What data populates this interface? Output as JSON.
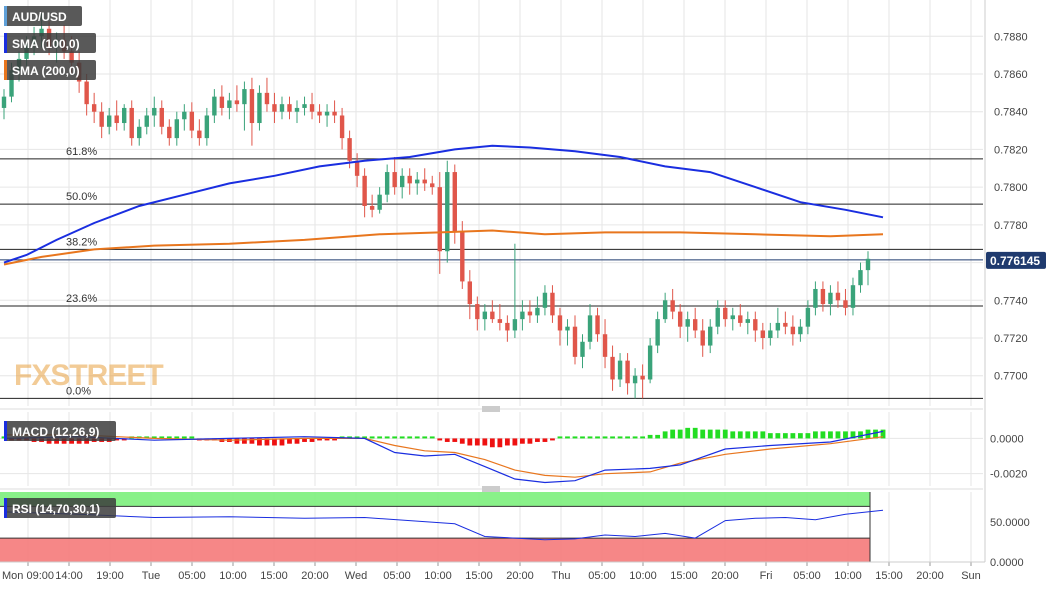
{
  "symbol": "AUD/USD",
  "indicators": {
    "sma100": {
      "label": "SMA (100,0)",
      "color": "#1a2ee0"
    },
    "sma200": {
      "label": "SMA (200,0)",
      "color": "#e8761e"
    },
    "macd": {
      "label": "MACD (12,26,9)"
    },
    "rsi": {
      "label": "RSI (14,70,30,1)"
    }
  },
  "watermark": "FXSTREET",
  "last_price": "0.776145",
  "colors": {
    "up": "#3aa37a",
    "down": "#e0564a",
    "macd_pos": "#22dd22",
    "macd_neg": "#ee1111"
  },
  "chart_data": [
    {
      "type": "candlestick",
      "title": "AUD/USD",
      "ylim": [
        0.7685,
        0.7895
      ],
      "y_ticks": [
        "0.7700",
        "0.7720",
        "0.7740",
        "0.7760",
        "0.7780",
        "0.7800",
        "0.7820",
        "0.7840",
        "0.7860",
        "0.7880"
      ],
      "x_ticks": [
        "Mon 09:00",
        "14:00",
        "19:00",
        "Tue",
        "05:00",
        "10:00",
        "15:00",
        "20:00",
        "Wed",
        "05:00",
        "10:00",
        "15:00",
        "20:00",
        "Thu",
        "05:00",
        "10:00",
        "15:00",
        "20:00",
        "Fri",
        "05:00",
        "10:00",
        "15:00",
        "20:00",
        "Sun"
      ],
      "fibonacci": [
        {
          "label": "61.8%",
          "value": 0.7815
        },
        {
          "label": "50.0%",
          "value": 0.7791
        },
        {
          "label": "38.2%",
          "value": 0.7767
        },
        {
          "label": "23.6%",
          "value": 0.7737
        },
        {
          "label": "0.0%",
          "value": 0.7688
        }
      ],
      "current_price": 0.776145,
      "ohlc": [
        [
          0.7842,
          0.7852,
          0.7836,
          0.7848
        ],
        [
          0.7848,
          0.7866,
          0.7845,
          0.7862
        ],
        [
          0.7862,
          0.7872,
          0.7856,
          0.7868
        ],
        [
          0.7868,
          0.788,
          0.7864,
          0.7876
        ],
        [
          0.7876,
          0.7885,
          0.787,
          0.788
        ],
        [
          0.788,
          0.7892,
          0.7874,
          0.7884
        ],
        [
          0.7884,
          0.7888,
          0.787,
          0.7874
        ],
        [
          0.7874,
          0.7882,
          0.7866,
          0.7878
        ],
        [
          0.7878,
          0.7886,
          0.7868,
          0.7872
        ],
        [
          0.7872,
          0.788,
          0.786,
          0.7866
        ],
        [
          0.7866,
          0.7872,
          0.785,
          0.7856
        ],
        [
          0.7856,
          0.786,
          0.7838,
          0.7844
        ],
        [
          0.7844,
          0.785,
          0.7834,
          0.784
        ],
        [
          0.784,
          0.7845,
          0.7826,
          0.7832
        ],
        [
          0.7832,
          0.7842,
          0.7828,
          0.7838
        ],
        [
          0.7838,
          0.7846,
          0.783,
          0.7834
        ],
        [
          0.7834,
          0.7844,
          0.783,
          0.7842
        ],
        [
          0.7842,
          0.7846,
          0.7822,
          0.7826
        ],
        [
          0.7826,
          0.7836,
          0.7822,
          0.7832
        ],
        [
          0.7832,
          0.7842,
          0.7828,
          0.7838
        ],
        [
          0.7838,
          0.7848,
          0.7832,
          0.7842
        ],
        [
          0.7842,
          0.7846,
          0.7828,
          0.7832
        ],
        [
          0.7832,
          0.7836,
          0.7822,
          0.7826
        ],
        [
          0.7826,
          0.784,
          0.7822,
          0.7836
        ],
        [
          0.7836,
          0.7844,
          0.783,
          0.784
        ],
        [
          0.784,
          0.7845,
          0.7826,
          0.783
        ],
        [
          0.783,
          0.7836,
          0.7822,
          0.7826
        ],
        [
          0.7826,
          0.7842,
          0.7822,
          0.7838
        ],
        [
          0.7838,
          0.7852,
          0.7834,
          0.7848
        ],
        [
          0.7848,
          0.7854,
          0.7838,
          0.7842
        ],
        [
          0.7842,
          0.785,
          0.7836,
          0.7846
        ],
        [
          0.7846,
          0.7854,
          0.784,
          0.7844
        ],
        [
          0.7844,
          0.7856,
          0.783,
          0.7852
        ],
        [
          0.7852,
          0.7858,
          0.7822,
          0.7834
        ],
        [
          0.7834,
          0.7854,
          0.783,
          0.785
        ],
        [
          0.785,
          0.7858,
          0.784,
          0.7844
        ],
        [
          0.7844,
          0.785,
          0.7834,
          0.784
        ],
        [
          0.784,
          0.7848,
          0.7836,
          0.7844
        ],
        [
          0.7844,
          0.7848,
          0.7836,
          0.784
        ],
        [
          0.784,
          0.7846,
          0.7834,
          0.7842
        ],
        [
          0.7842,
          0.7848,
          0.7838,
          0.7844
        ],
        [
          0.7844,
          0.785,
          0.7836,
          0.784
        ],
        [
          0.784,
          0.7844,
          0.7834,
          0.7838
        ],
        [
          0.7838,
          0.7844,
          0.7832,
          0.784
        ],
        [
          0.784,
          0.7846,
          0.7834,
          0.7838
        ],
        [
          0.7838,
          0.7842,
          0.782,
          0.7826
        ],
        [
          0.7826,
          0.783,
          0.781,
          0.7814
        ],
        [
          0.7814,
          0.7818,
          0.78,
          0.7806
        ],
        [
          0.7806,
          0.781,
          0.7784,
          0.779
        ],
        [
          0.779,
          0.7796,
          0.7784,
          0.7788
        ],
        [
          0.7788,
          0.78,
          0.7786,
          0.7796
        ],
        [
          0.7796,
          0.7812,
          0.7792,
          0.7808
        ],
        [
          0.7808,
          0.7816,
          0.7796,
          0.78
        ],
        [
          0.78,
          0.781,
          0.7794,
          0.7806
        ],
        [
          0.7806,
          0.781,
          0.7796,
          0.7802
        ],
        [
          0.7802,
          0.7808,
          0.7796,
          0.7804
        ],
        [
          0.7804,
          0.781,
          0.7798,
          0.7802
        ],
        [
          0.7802,
          0.7806,
          0.7796,
          0.78
        ],
        [
          0.78,
          0.7808,
          0.7754,
          0.7766
        ],
        [
          0.7766,
          0.7814,
          0.776,
          0.7808
        ],
        [
          0.7808,
          0.7812,
          0.777,
          0.7776
        ],
        [
          0.7776,
          0.7782,
          0.7746,
          0.775
        ],
        [
          0.775,
          0.7756,
          0.773,
          0.7738
        ],
        [
          0.7738,
          0.7742,
          0.7724,
          0.773
        ],
        [
          0.773,
          0.7738,
          0.7724,
          0.7734
        ],
        [
          0.7734,
          0.774,
          0.7728,
          0.773
        ],
        [
          0.773,
          0.7738,
          0.7724,
          0.7728
        ],
        [
          0.7728,
          0.7732,
          0.7718,
          0.7724
        ],
        [
          0.7724,
          0.777,
          0.772,
          0.773
        ],
        [
          0.773,
          0.774,
          0.7724,
          0.7734
        ],
        [
          0.7734,
          0.774,
          0.7728,
          0.7732
        ],
        [
          0.7732,
          0.7742,
          0.7728,
          0.7736
        ],
        [
          0.7736,
          0.7748,
          0.7732,
          0.7744
        ],
        [
          0.7744,
          0.7748,
          0.7728,
          0.7732
        ],
        [
          0.7732,
          0.7736,
          0.7716,
          0.7724
        ],
        [
          0.7724,
          0.773,
          0.7716,
          0.7726
        ],
        [
          0.7726,
          0.7732,
          0.7706,
          0.771
        ],
        [
          0.771,
          0.7722,
          0.7704,
          0.7718
        ],
        [
          0.7718,
          0.7738,
          0.7714,
          0.7732
        ],
        [
          0.7732,
          0.7736,
          0.7718,
          0.7722
        ],
        [
          0.7722,
          0.773,
          0.7704,
          0.771
        ],
        [
          0.771,
          0.7716,
          0.7692,
          0.7698
        ],
        [
          0.7698,
          0.7712,
          0.7694,
          0.7708
        ],
        [
          0.7708,
          0.7712,
          0.769,
          0.7696
        ],
        [
          0.7696,
          0.7704,
          0.7688,
          0.77
        ],
        [
          0.77,
          0.7706,
          0.7688,
          0.7698
        ],
        [
          0.7698,
          0.772,
          0.7696,
          0.7716
        ],
        [
          0.7716,
          0.7734,
          0.7712,
          0.773
        ],
        [
          0.773,
          0.7744,
          0.7728,
          0.774
        ],
        [
          0.774,
          0.7746,
          0.773,
          0.7734
        ],
        [
          0.7734,
          0.7738,
          0.772,
          0.7726
        ],
        [
          0.7726,
          0.7734,
          0.7718,
          0.773
        ],
        [
          0.773,
          0.7736,
          0.772,
          0.7724
        ],
        [
          0.7724,
          0.773,
          0.771,
          0.7716
        ],
        [
          0.7716,
          0.773,
          0.7712,
          0.7726
        ],
        [
          0.7726,
          0.774,
          0.7722,
          0.7736
        ],
        [
          0.7736,
          0.774,
          0.7726,
          0.773
        ],
        [
          0.773,
          0.7736,
          0.7724,
          0.7732
        ],
        [
          0.7732,
          0.7738,
          0.7726,
          0.7728
        ],
        [
          0.7728,
          0.7734,
          0.7722,
          0.773
        ],
        [
          0.773,
          0.7734,
          0.7718,
          0.7724
        ],
        [
          0.7724,
          0.7728,
          0.7714,
          0.772
        ],
        [
          0.772,
          0.7728,
          0.7716,
          0.7724
        ],
        [
          0.7724,
          0.7736,
          0.772,
          0.7728
        ],
        [
          0.7728,
          0.7734,
          0.7722,
          0.7726
        ],
        [
          0.7726,
          0.7732,
          0.7716,
          0.7722
        ],
        [
          0.7722,
          0.773,
          0.7718,
          0.7726
        ],
        [
          0.7726,
          0.774,
          0.7722,
          0.7736
        ],
        [
          0.7736,
          0.775,
          0.7732,
          0.7746
        ],
        [
          0.7746,
          0.775,
          0.7734,
          0.7738
        ],
        [
          0.7738,
          0.7748,
          0.7732,
          0.7744
        ],
        [
          0.7744,
          0.775,
          0.7736,
          0.774
        ],
        [
          0.774,
          0.7746,
          0.7732,
          0.7736
        ],
        [
          0.7736,
          0.7752,
          0.7732,
          0.7748
        ],
        [
          0.7748,
          0.776,
          0.7744,
          0.7756
        ],
        [
          0.7756,
          0.7766,
          0.7748,
          0.7762
        ]
      ],
      "sma100": [
        [
          0,
          0.776
        ],
        [
          3,
          0.7764
        ],
        [
          7,
          0.7772
        ],
        [
          12,
          0.7781
        ],
        [
          18,
          0.779
        ],
        [
          24,
          0.7796
        ],
        [
          30,
          0.7802
        ],
        [
          36,
          0.7806
        ],
        [
          42,
          0.7811
        ],
        [
          48,
          0.7814
        ],
        [
          54,
          0.7816
        ],
        [
          60,
          0.782
        ],
        [
          65,
          0.7822
        ],
        [
          70,
          0.7821
        ],
        [
          76,
          0.7819
        ],
        [
          82,
          0.7816
        ],
        [
          88,
          0.7811
        ],
        [
          94,
          0.7808
        ],
        [
          100,
          0.78
        ],
        [
          106,
          0.7792
        ],
        [
          112,
          0.7788
        ],
        [
          117,
          0.7784
        ]
      ],
      "sma200": [
        [
          0,
          0.7759
        ],
        [
          5,
          0.7763
        ],
        [
          12,
          0.7767
        ],
        [
          20,
          0.7769
        ],
        [
          30,
          0.777
        ],
        [
          40,
          0.7772
        ],
        [
          50,
          0.7775
        ],
        [
          58,
          0.7776
        ],
        [
          65,
          0.7777
        ],
        [
          72,
          0.7775
        ],
        [
          80,
          0.7776
        ],
        [
          90,
          0.7776
        ],
        [
          100,
          0.7775
        ],
        [
          110,
          0.7774
        ],
        [
          117,
          0.7775
        ]
      ]
    },
    {
      "type": "macd",
      "title": "MACD (12,26,9)",
      "ylim": [
        -0.0027,
        0.0015
      ],
      "y_ticks": [
        "0.0000",
        "-0.0020"
      ],
      "macd_line": [
        [
          0,
          0.0
        ],
        [
          10,
          0.0001
        ],
        [
          20,
          -0.0001
        ],
        [
          30,
          0.0
        ],
        [
          40,
          0.0001
        ],
        [
          48,
          0.0
        ],
        [
          52,
          -0.0008
        ],
        [
          56,
          -0.001
        ],
        [
          60,
          -0.0009
        ],
        [
          64,
          -0.0016
        ],
        [
          68,
          -0.0023
        ],
        [
          72,
          -0.0025
        ],
        [
          76,
          -0.0024
        ],
        [
          80,
          -0.0018
        ],
        [
          86,
          -0.0017
        ],
        [
          90,
          -0.0015
        ],
        [
          96,
          -0.0006
        ],
        [
          102,
          -0.0004
        ],
        [
          110,
          -0.0002
        ],
        [
          117,
          0.0004
        ]
      ],
      "signal_line": [
        [
          0,
          0.0002
        ],
        [
          10,
          0.0002
        ],
        [
          20,
          0.0
        ],
        [
          30,
          -0.0001
        ],
        [
          40,
          0.0
        ],
        [
          48,
          0.0
        ],
        [
          52,
          -0.0004
        ],
        [
          56,
          -0.0007
        ],
        [
          60,
          -0.0008
        ],
        [
          64,
          -0.0012
        ],
        [
          68,
          -0.0018
        ],
        [
          72,
          -0.0021
        ],
        [
          76,
          -0.0022
        ],
        [
          80,
          -0.002
        ],
        [
          86,
          -0.0019
        ],
        [
          90,
          -0.0014
        ],
        [
          96,
          -0.0009
        ],
        [
          102,
          -0.0006
        ],
        [
          110,
          -0.0003
        ],
        [
          117,
          0.0001
        ]
      ],
      "histogram": [
        0.0,
        -0.0001,
        -0.0001,
        -0.0001,
        -0.0002,
        -0.0002,
        -0.0003,
        -0.0003,
        -0.0003,
        -0.0003,
        -0.0003,
        -0.0003,
        -0.0002,
        -0.0002,
        -0.0002,
        -0.0001,
        -0.0001,
        0.0,
        0.0,
        0.0001,
        0.0001,
        0.0,
        0.0,
        0.0,
        0.0,
        0.0,
        -0.0001,
        -0.0001,
        -0.0001,
        -0.0002,
        -0.0002,
        -0.0003,
        -0.0003,
        -0.0003,
        -0.0004,
        -0.0004,
        -0.0004,
        -0.0004,
        -0.0003,
        -0.0003,
        -0.0002,
        -0.0002,
        -0.0001,
        -0.0001,
        -0.0001,
        0.0,
        0.0001,
        0.0001,
        0.0,
        0.0001,
        0.0001,
        0.0001,
        0.0,
        0.0,
        0.0,
        0.0,
        0.0,
        0.0,
        -0.0001,
        -0.0002,
        -0.0002,
        -0.0003,
        -0.0004,
        -0.0004,
        -0.0004,
        -0.0005,
        -0.0005,
        -0.0004,
        -0.0004,
        -0.0003,
        -0.0003,
        -0.0002,
        -0.0002,
        -0.0001,
        0.0,
        0.0,
        0.0001,
        0.0001,
        0.0001,
        0.0001,
        0.0001,
        0.0001,
        0.0001,
        0.0001,
        0.0001,
        0.0001,
        0.0002,
        0.0002,
        0.0004,
        0.0005,
        0.0005,
        0.0006,
        0.0006,
        0.0005,
        0.0005,
        0.0005,
        0.0005,
        0.0004,
        0.0004,
        0.0004,
        0.0004,
        0.0004,
        0.0003,
        0.0003,
        0.0003,
        0.0003,
        0.0003,
        0.0003,
        0.0004,
        0.0004,
        0.0004,
        0.0004,
        0.0004,
        0.0004,
        0.0004,
        0.0005,
        0.0005,
        0.0005
      ]
    },
    {
      "type": "rsi",
      "title": "RSI (14,70,30,1)",
      "ylim": [
        0,
        88
      ],
      "y_ticks": [
        "50.0000",
        "0.0000"
      ],
      "overbought": 70,
      "oversold": 30,
      "rsi_line": [
        [
          0,
          63
        ],
        [
          10,
          60
        ],
        [
          20,
          56
        ],
        [
          30,
          57
        ],
        [
          40,
          55
        ],
        [
          48,
          56
        ],
        [
          54,
          52
        ],
        [
          60,
          48
        ],
        [
          64,
          32
        ],
        [
          68,
          30
        ],
        [
          72,
          28
        ],
        [
          76,
          29
        ],
        [
          80,
          34
        ],
        [
          84,
          32
        ],
        [
          88,
          36
        ],
        [
          92,
          30
        ],
        [
          96,
          52
        ],
        [
          100,
          55
        ],
        [
          104,
          56
        ],
        [
          108,
          53
        ],
        [
          112,
          60
        ],
        [
          117,
          65
        ]
      ]
    }
  ]
}
